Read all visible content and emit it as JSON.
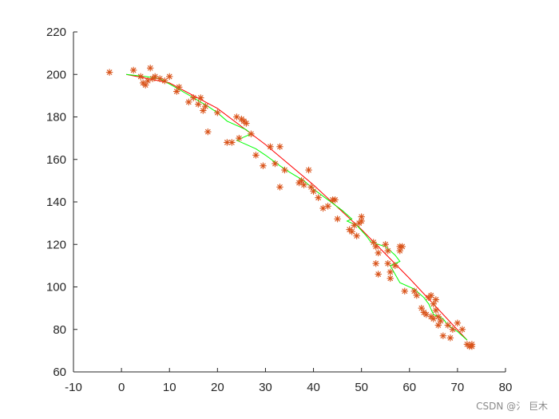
{
  "chart_data": {
    "type": "scatter",
    "xlim": [
      -10,
      80
    ],
    "ylim": [
      60,
      220
    ],
    "xticks": [
      -10,
      0,
      10,
      20,
      30,
      40,
      50,
      60,
      70,
      80
    ],
    "yticks": [
      60,
      80,
      100,
      120,
      140,
      160,
      180,
      200,
      220
    ],
    "grid": false,
    "colors": {
      "points": "#d95319",
      "red_line": "#ff0000",
      "green_line": "#00ff00",
      "axis": "#262626"
    },
    "points": [
      [
        -2.5,
        201
      ],
      [
        2.5,
        202
      ],
      [
        4,
        199
      ],
      [
        4.5,
        196
      ],
      [
        5,
        195
      ],
      [
        5.5,
        197
      ],
      [
        6,
        203
      ],
      [
        6.5,
        198
      ],
      [
        7,
        199
      ],
      [
        8,
        198
      ],
      [
        9,
        197
      ],
      [
        10,
        199
      ],
      [
        11.5,
        192
      ],
      [
        12,
        194
      ],
      [
        14,
        187
      ],
      [
        15,
        189
      ],
      [
        16,
        186
      ],
      [
        16.5,
        189
      ],
      [
        17,
        183
      ],
      [
        17.5,
        185
      ],
      [
        18,
        173
      ],
      [
        20,
        182
      ],
      [
        22,
        168
      ],
      [
        23,
        168
      ],
      [
        24,
        180
      ],
      [
        24.5,
        170
      ],
      [
        25,
        179
      ],
      [
        25.5,
        178
      ],
      [
        26,
        177
      ],
      [
        27,
        172
      ],
      [
        28,
        162
      ],
      [
        29.5,
        157
      ],
      [
        31,
        166
      ],
      [
        32,
        158
      ],
      [
        33,
        147
      ],
      [
        33,
        166
      ],
      [
        34,
        155
      ],
      [
        37,
        149
      ],
      [
        37.5,
        150
      ],
      [
        38,
        148
      ],
      [
        39,
        155
      ],
      [
        39.5,
        147
      ],
      [
        40,
        145
      ],
      [
        41,
        142
      ],
      [
        42,
        137
      ],
      [
        43,
        138
      ],
      [
        44,
        141
      ],
      [
        44.5,
        141
      ],
      [
        45,
        132
      ],
      [
        47.5,
        127
      ],
      [
        48,
        126
      ],
      [
        48.5,
        129
      ],
      [
        49,
        124
      ],
      [
        49.5,
        130
      ],
      [
        50,
        131
      ],
      [
        50,
        133
      ],
      [
        52.5,
        121
      ],
      [
        53,
        119
      ],
      [
        53.5,
        116
      ],
      [
        53,
        111
      ],
      [
        53.5,
        106
      ],
      [
        55,
        120
      ],
      [
        55.5,
        117
      ],
      [
        55.5,
        111
      ],
      [
        56,
        107
      ],
      [
        56,
        104
      ],
      [
        57,
        110
      ],
      [
        58,
        119
      ],
      [
        58,
        117
      ],
      [
        58.5,
        119
      ],
      [
        59,
        98
      ],
      [
        61,
        98
      ],
      [
        61.5,
        96
      ],
      [
        62.5,
        90
      ],
      [
        63,
        88
      ],
      [
        63.5,
        87
      ],
      [
        64,
        95
      ],
      [
        64.5,
        96
      ],
      [
        64.5,
        86
      ],
      [
        65,
        92
      ],
      [
        65,
        85
      ],
      [
        65.5,
        94
      ],
      [
        65.5,
        89
      ],
      [
        66,
        86
      ],
      [
        66,
        82
      ],
      [
        66.5,
        84
      ],
      [
        67,
        77
      ],
      [
        68,
        82
      ],
      [
        68.5,
        76
      ],
      [
        69,
        80
      ],
      [
        70,
        83
      ],
      [
        71,
        80
      ],
      [
        72,
        73
      ],
      [
        72.5,
        72
      ],
      [
        73,
        73
      ],
      [
        73,
        72
      ]
    ],
    "red_line": [
      [
        1,
        200
      ],
      [
        10,
        196
      ],
      [
        20,
        184
      ],
      [
        30,
        167
      ],
      [
        40,
        148
      ],
      [
        50,
        127
      ],
      [
        60,
        104
      ],
      [
        72,
        75
      ]
    ],
    "green_line": [
      [
        1,
        200
      ],
      [
        5,
        199
      ],
      [
        8,
        198
      ],
      [
        12,
        193
      ],
      [
        15,
        189
      ],
      [
        18,
        185
      ],
      [
        20,
        182
      ],
      [
        22,
        178
      ],
      [
        24,
        176
      ],
      [
        26,
        174
      ],
      [
        27,
        172
      ],
      [
        25,
        170
      ],
      [
        24,
        169
      ],
      [
        26,
        167
      ],
      [
        28,
        165
      ],
      [
        30,
        162
      ],
      [
        33,
        157
      ],
      [
        35,
        154
      ],
      [
        38,
        150
      ],
      [
        40,
        146
      ],
      [
        43,
        141
      ],
      [
        46,
        136
      ],
      [
        48,
        132
      ],
      [
        47,
        131
      ],
      [
        49,
        129
      ],
      [
        51,
        124
      ],
      [
        52,
        121
      ],
      [
        55,
        119
      ],
      [
        57,
        115
      ],
      [
        58,
        112
      ],
      [
        56,
        110
      ],
      [
        57,
        106
      ],
      [
        58,
        102
      ],
      [
        61,
        99
      ],
      [
        63,
        95
      ],
      [
        64,
        92
      ],
      [
        65,
        87
      ],
      [
        67,
        85
      ],
      [
        68,
        82
      ],
      [
        70,
        79
      ],
      [
        72,
        75
      ]
    ]
  },
  "watermark": "CSDN @氵 巨木"
}
